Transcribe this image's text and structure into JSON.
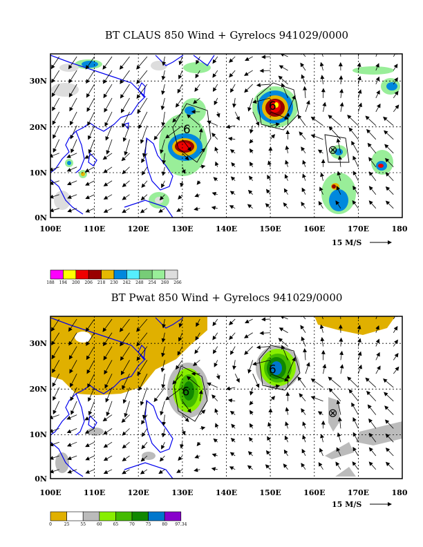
{
  "panels": [
    {
      "title": "BT CLAUS 850 Wind + Gyrelocs 941029/0000",
      "x_ticks": [
        "100E",
        "110E",
        "120E",
        "130E",
        "140E",
        "150E",
        "160E",
        "170E",
        "180"
      ],
      "y_ticks": [
        "30N",
        "20N",
        "10N",
        "0N"
      ],
      "scale_label": "15 M/S",
      "colorbar": {
        "labels": [
          "188",
          "194",
          "200",
          "206",
          "218",
          "230",
          "242",
          "248",
          "254",
          "260",
          "266"
        ],
        "colors": [
          "#ff00ff",
          "#ffff00",
          "#ee0000",
          "#990000",
          "#e6b800",
          "#0088dd",
          "#55eeff",
          "#77cc77",
          "#99ee99",
          "#dddddd"
        ]
      },
      "gyrelocs": [
        {
          "symbol": "6",
          "lon": 131.0,
          "lat": 19.2
        },
        {
          "symbol": "6",
          "lon": 150.5,
          "lat": 24.3
        },
        {
          "symbol": "⊗",
          "lon": 164.2,
          "lat": 14.8
        }
      ]
    },
    {
      "title": "BT Pwat 850 Wind + Gyrelocs 941029/0000",
      "x_ticks": [
        "100E",
        "110E",
        "120E",
        "130E",
        "140E",
        "150E",
        "160E",
        "170E",
        "180"
      ],
      "y_ticks": [
        "30N",
        "20N",
        "10N",
        "0N"
      ],
      "scale_label": "15 M/S",
      "colorbar": {
        "labels": [
          "0",
          "25",
          "55",
          "60",
          "65",
          "70",
          "75",
          "80",
          "97.34"
        ],
        "colors": [
          "#e0b000",
          "#ffffff",
          "#bbbbbb",
          "#88ee00",
          "#44bb00",
          "#118800",
          "#0077cc",
          "#8800cc"
        ]
      },
      "gyrelocs": [
        {
          "symbol": "6",
          "lon": 130.8,
          "lat": 19.2
        },
        {
          "symbol": "6",
          "lon": 150.5,
          "lat": 24.0
        },
        {
          "symbol": "⊗",
          "lon": 164.2,
          "lat": 14.5
        }
      ]
    }
  ]
}
